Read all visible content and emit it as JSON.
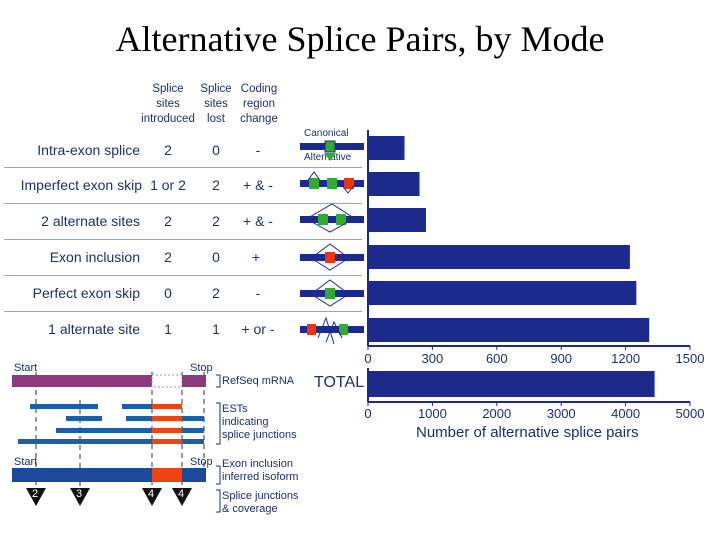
{
  "title": "Alternative Splice Pairs, by Mode",
  "columns": {
    "introduced": [
      "Splice",
      "sites",
      "introduced"
    ],
    "lost": [
      "Splice",
      "sites",
      "lost"
    ],
    "coding": [
      "Coding",
      "region",
      "change"
    ]
  },
  "rows": [
    {
      "mode": "Intra-exon splice",
      "introduced": "2",
      "lost": "0",
      "coding": "-"
    },
    {
      "mode": "Imperfect exon skip",
      "introduced": "1 or 2",
      "lost": "2",
      "coding": "+ & -"
    },
    {
      "mode": "2 alternate sites",
      "introduced": "2",
      "lost": "2",
      "coding": "+ & -"
    },
    {
      "mode": "Exon inclusion",
      "introduced": "2",
      "lost": "0",
      "coding": "+"
    },
    {
      "mode": "Perfect exon skip",
      "introduced": "0",
      "lost": "2",
      "coding": "-"
    },
    {
      "mode": "1 alternate site",
      "introduced": "1",
      "lost": "1",
      "coding": "+ or -"
    }
  ],
  "icon_labels": {
    "canonical": "Canonical",
    "alternative": "Alternative"
  },
  "chart_data": [
    {
      "type": "bar",
      "orientation": "horizontal",
      "categories": [
        "Intra-exon splice",
        "Imperfect exon skip",
        "2 alternate sites",
        "Exon inclusion",
        "Perfect exon skip",
        "1 alternate site"
      ],
      "values": [
        170,
        240,
        270,
        1220,
        1250,
        1310
      ],
      "xlim": [
        0,
        1500
      ],
      "xticks": [
        "0",
        "300",
        "600",
        "900",
        "1200",
        "1500"
      ],
      "grid": false
    },
    {
      "type": "bar",
      "orientation": "horizontal",
      "categories": [
        "TOTAL"
      ],
      "values": [
        4450
      ],
      "xlim": [
        0,
        5000
      ],
      "xticks": [
        "0",
        "1000",
        "2000",
        "3000",
        "4000",
        "5000"
      ],
      "xlabel": "Number of alternative splice pairs",
      "grid": false
    }
  ],
  "legend_diagram": {
    "start": "Start",
    "stop": "Stop",
    "refseq": "RefSeq mRNA",
    "ests": [
      "ESTs",
      "indicating",
      "splice junctions"
    ],
    "inclusion": [
      "Exon inclusion",
      "inferred isoform"
    ],
    "junctions": [
      "Splice junctions",
      "& coverage"
    ],
    "coverage": [
      "2",
      "3",
      "4",
      "4"
    ]
  },
  "colors": {
    "bar": "#1b2a8c",
    "text": "#1e2f6e",
    "green": "#33aa33",
    "red": "#ee3311",
    "purple": "#8b3a7e",
    "orange": "#ee4411"
  }
}
